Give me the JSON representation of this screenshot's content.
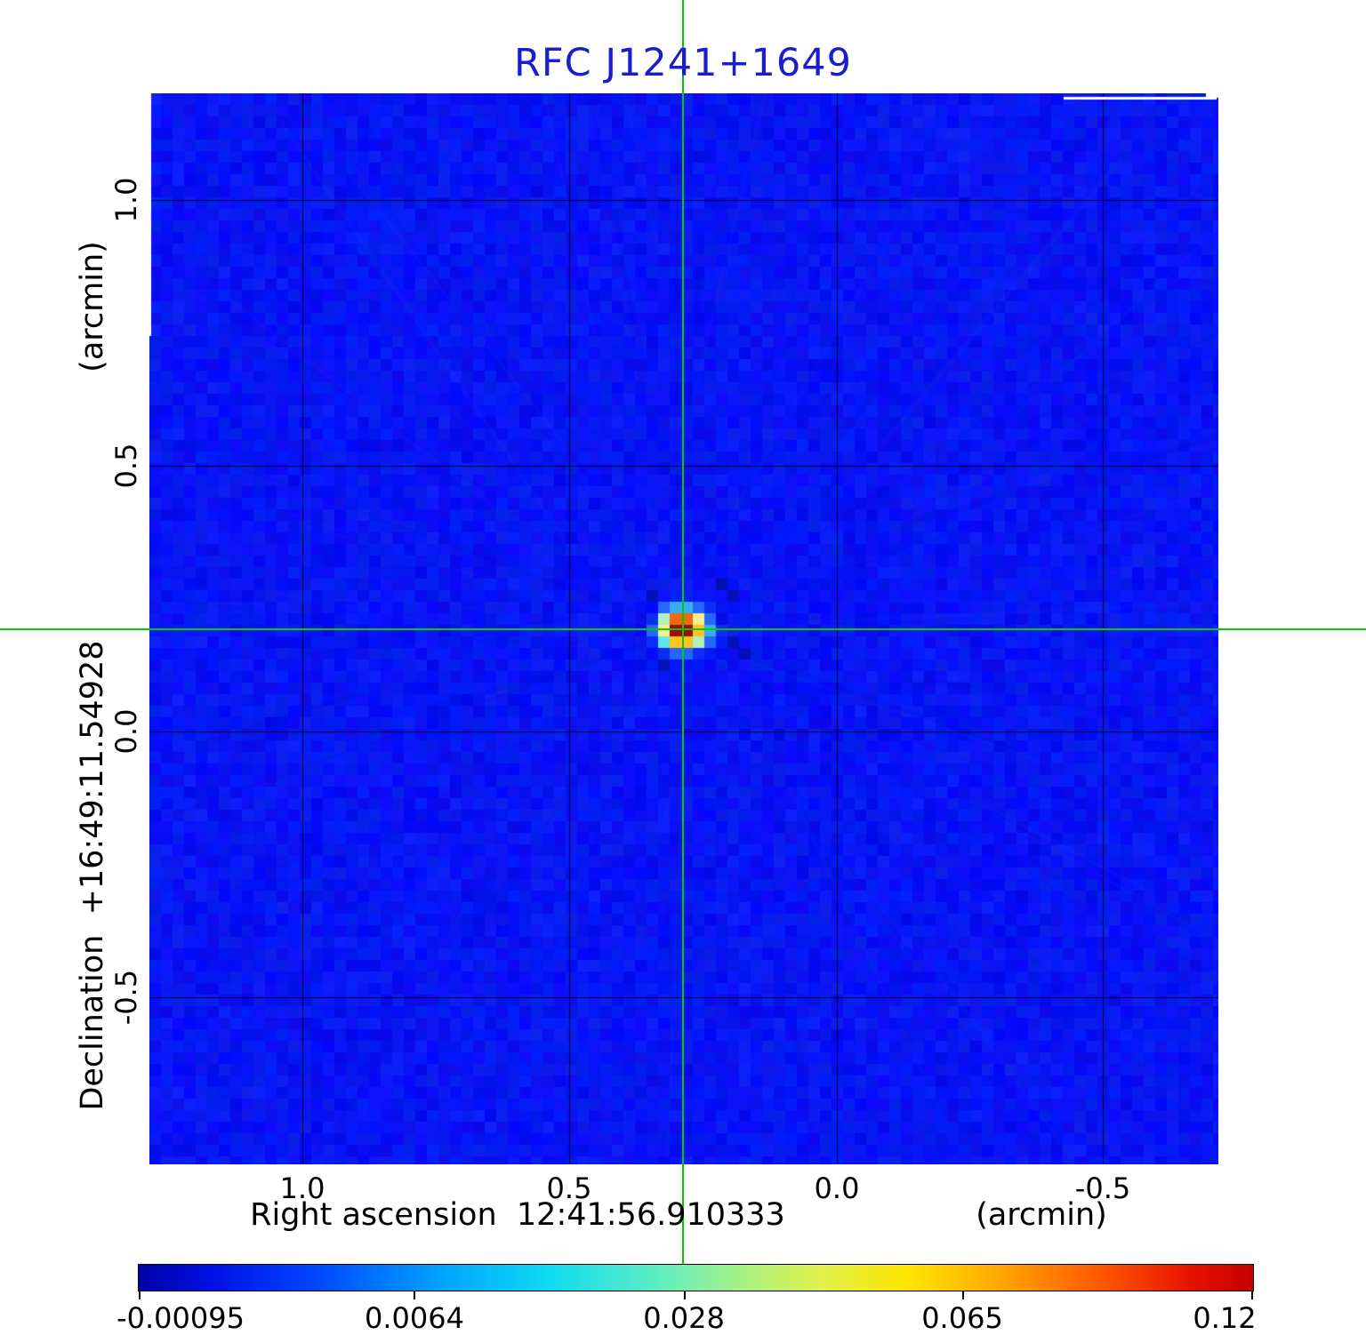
{
  "title": "RFC J1241+1649",
  "colors": {
    "title": "#1b1ccd",
    "image_background_blue": "#0b17ef",
    "crosshair_green": "#00cc00",
    "gridline": "#000000",
    "source_peak_red": "#a50f0f",
    "colorbar_stops": [
      "#0000a6 0%",
      "#0013e8 7%",
      "#0048ff 16%",
      "#00a2ff 27%",
      "#10dcf2 37%",
      "#62eec0 47%",
      "#a5f283 54%",
      "#dff24e 61%",
      "#ffe500 69%",
      "#ffa100 78%",
      "#ff5a00 86%",
      "#e91400 94%",
      "#c40000 100%"
    ]
  },
  "axes": {
    "x": {
      "label": "Right ascension  12:41:56.910333",
      "unit": "(arcmin)",
      "ticks": [
        "1.0",
        "0.5",
        "0.0",
        "-0.5"
      ]
    },
    "y": {
      "label": "Declination  +16:49:11.54928",
      "unit": "(arcmin)",
      "ticks": [
        "1.0",
        "0.5",
        "0.0",
        "-0.5"
      ]
    }
  },
  "colorbar": {
    "tick_labels": [
      "-0.00095",
      "0.0064",
      "0.028",
      "0.065",
      "0.12"
    ]
  },
  "chart_data": {
    "type": "heatmap",
    "title": "RFC J1241+1649",
    "xlabel": "Right ascension  12:41:56.910333",
    "ylabel": "Declination  +16:49:11.54928",
    "axis_unit": "(arcmin)",
    "x_ticks_arcmin": [
      1.0,
      0.5,
      0.0,
      -0.5
    ],
    "y_ticks_arcmin": [
      1.0,
      0.5,
      0.0,
      -0.5
    ],
    "x_range_arcmin": [
      1.29,
      -0.71
    ],
    "y_range_arcmin": [
      -0.81,
      1.19
    ],
    "grid": true,
    "colormap": "jet",
    "colorbar_tick_values": [
      -0.00095,
      0.0064,
      0.028,
      0.065,
      0.12
    ],
    "colorbar_scale": "sqrt",
    "intensity_min": -0.00095,
    "intensity_max": 0.12,
    "source": {
      "name": "RFC J1241+1649",
      "right_ascension": "12:41:56.910333",
      "declination": "+16:49:11.54928",
      "peak_offset_arcmin": [
        0.29,
        0.19
      ],
      "peak_value": 0.12
    },
    "crosshair_offset_arcmin": [
      0.29,
      0.19
    ]
  }
}
